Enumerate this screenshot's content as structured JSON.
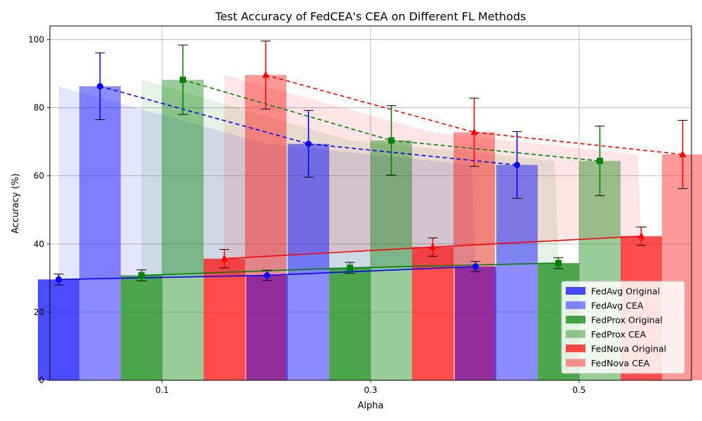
{
  "chart_data": {
    "type": "bar",
    "title": "Test Accuracy of FedCEA's CEA on Different FL Methods",
    "xlabel": "Alpha",
    "ylabel": "Accuracy (%)",
    "categories": [
      "0.1",
      "0.3",
      "0.5"
    ],
    "ylim": [
      0,
      104
    ],
    "yticks": [
      0,
      20,
      40,
      60,
      80,
      100
    ],
    "grid": true,
    "legend_position": "lower right",
    "series": [
      {
        "name": "FedAvg Original",
        "method": "FedAvg",
        "kind": "original",
        "color": "#0000ff",
        "bar_alpha": 0.7,
        "values": [
          29.6,
          30.8,
          33.4
        ],
        "errors": [
          1.6,
          1.5,
          1.5
        ],
        "marker": "circle",
        "line": "solid"
      },
      {
        "name": "FedAvg CEA",
        "method": "FedAvg",
        "kind": "cea",
        "color": "#0000ff",
        "bar_alpha": 0.45,
        "values": [
          86.3,
          69.4,
          63.2
        ],
        "errors": [
          9.8,
          9.8,
          9.8
        ],
        "marker": "circle",
        "line": "dashed"
      },
      {
        "name": "FedProx Original",
        "method": "FedProx",
        "kind": "original",
        "color": "#008000",
        "bar_alpha": 0.7,
        "values": [
          30.8,
          33.0,
          34.4
        ],
        "errors": [
          1.6,
          1.6,
          1.6
        ],
        "marker": "square",
        "line": "solid"
      },
      {
        "name": "FedProx CEA",
        "method": "FedProx",
        "kind": "cea",
        "color": "#008000",
        "bar_alpha": 0.4,
        "values": [
          88.2,
          70.4,
          64.4
        ],
        "errors": [
          10.2,
          10.2,
          10.2
        ],
        "marker": "square",
        "line": "dashed"
      },
      {
        "name": "FedNova Original",
        "method": "FedNova",
        "kind": "original",
        "color": "#ff0000",
        "bar_alpha": 0.7,
        "values": [
          35.7,
          39.1,
          42.3
        ],
        "errors": [
          2.7,
          2.7,
          2.7
        ],
        "marker": "triangle",
        "line": "solid"
      },
      {
        "name": "FedNova CEA",
        "method": "FedNova",
        "kind": "cea",
        "color": "#ff0000",
        "bar_alpha": 0.4,
        "values": [
          89.6,
          72.8,
          66.3
        ],
        "errors": [
          10.0,
          10.0,
          10.0
        ],
        "marker": "triangle",
        "line": "dashed"
      }
    ]
  }
}
